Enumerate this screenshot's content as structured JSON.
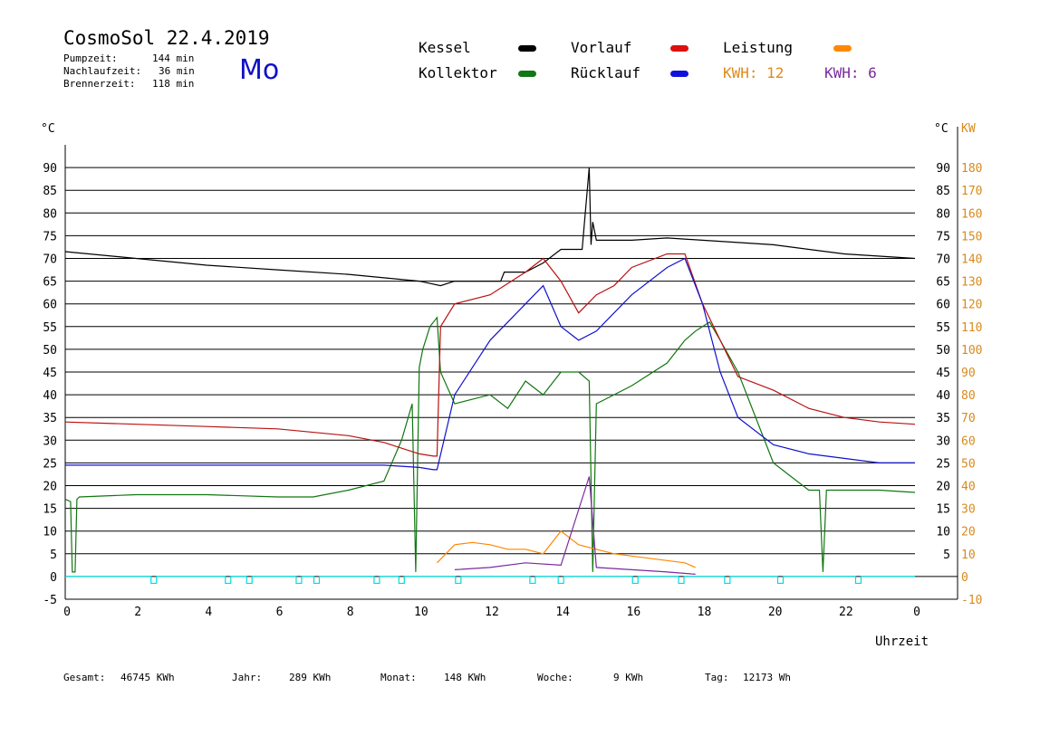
{
  "header": {
    "title": "CosmoSol 22.4.2019",
    "stats": [
      {
        "label": "Pumpzeit:",
        "value": "144 min"
      },
      {
        "label": "Nachlaufzeit:",
        "value": "36 min"
      },
      {
        "label": "Brennerzeit:",
        "value": "118 min"
      }
    ],
    "weekday": "Mo"
  },
  "legend": {
    "kessel": "Kessel",
    "kollektor": "Kollektor",
    "vorlauf": "Vorlauf",
    "ruecklauf": "Rücklauf",
    "leistung": "Leistung",
    "kwh1_label": "KWH: 12",
    "kwh2_label": "KWH: 6"
  },
  "colors": {
    "kessel": "#000000",
    "kollektor": "#117711",
    "vorlauf": "#bb1111",
    "ruecklauf": "#1111cc",
    "leistung": "#ff8800",
    "kwh2": "#7a2aa0",
    "pump": "#00dddd",
    "axis_right": "#d98a1a"
  },
  "footer": [
    {
      "label": "Gesamt:",
      "value": "46745 KWh"
    },
    {
      "label": "Jahr:",
      "value": "289 KWh"
    },
    {
      "label": "Monat:",
      "value": "148 KWh"
    },
    {
      "label": "Woche:",
      "value": "9 KWh"
    },
    {
      "label": "Tag:",
      "value": "12173 Wh"
    }
  ],
  "chart_data": {
    "type": "line",
    "title": "CosmoSol 22.4.2019",
    "xlabel": "Uhrzeit",
    "ylabel_left": "°C",
    "ylabel_right": "KW",
    "xlim": [
      0,
      24
    ],
    "ylim": [
      -5,
      95
    ],
    "x_ticks": [
      "0",
      "2",
      "4",
      "6",
      "8",
      "10",
      "12",
      "14",
      "16",
      "18",
      "20",
      "22",
      "0"
    ],
    "y_ticks_left": [
      "-5",
      "0",
      "5",
      "10",
      "15",
      "20",
      "25",
      "30",
      "35",
      "40",
      "45",
      "50",
      "55",
      "60",
      "65",
      "70",
      "75",
      "80",
      "85",
      "90"
    ],
    "y_ticks_right": [
      "-10",
      "0",
      "10",
      "20",
      "30",
      "40",
      "50",
      "60",
      "70",
      "80",
      "90",
      "100",
      "110",
      "120",
      "130",
      "140",
      "150",
      "160",
      "170",
      "180"
    ],
    "y_ticks_right_inner": [
      "5",
      "10",
      "15",
      "20",
      "25",
      "30",
      "35",
      "40",
      "45",
      "50",
      "55",
      "60",
      "65",
      "70",
      "75",
      "80",
      "85",
      "90"
    ],
    "grid": true,
    "series": [
      {
        "name": "Kessel",
        "x": [
          0,
          2,
          4,
          6,
          8,
          10,
          10.6,
          11,
          12,
          12.3,
          12.4,
          13,
          13.5,
          14,
          14.6,
          14.8,
          14.85,
          14.9,
          15,
          16,
          17,
          18,
          20,
          22,
          24
        ],
        "y": [
          71.5,
          70,
          68.5,
          67.5,
          66.5,
          65,
          64,
          65,
          65,
          65,
          67,
          67,
          69,
          72,
          72,
          90,
          73,
          78,
          74,
          74,
          74.5,
          74,
          73,
          71,
          70
        ]
      },
      {
        "name": "Kollektor",
        "x": [
          0,
          0.15,
          0.2,
          0.28,
          0.33,
          0.4,
          2,
          4,
          6,
          7,
          8,
          9,
          9.5,
          9.8,
          9.9,
          10,
          10.1,
          10.3,
          10.5,
          10.6,
          11,
          12,
          12.5,
          13,
          13.5,
          14,
          14.5,
          14.8,
          14.9,
          15,
          16,
          17,
          17.5,
          17.8,
          18,
          18.2,
          18.5,
          19,
          20,
          20.5,
          21,
          21.3,
          21.4,
          21.5,
          21.6,
          22,
          23,
          24
        ],
        "y": [
          17,
          16.5,
          1,
          1,
          17,
          17.5,
          18,
          18,
          17.5,
          17.5,
          19,
          21,
          30,
          38,
          1,
          46,
          50,
          55,
          57,
          45,
          38,
          40,
          37,
          43,
          40,
          45,
          45,
          43,
          1,
          38,
          42,
          47,
          52,
          54,
          55,
          56,
          52,
          45,
          25,
          22,
          19,
          19,
          1,
          19,
          19,
          19,
          19,
          18.5
        ]
      },
      {
        "name": "Vorlauf",
        "x": [
          0,
          2,
          4,
          6,
          8,
          9,
          10,
          10.4,
          10.5,
          10.6,
          11,
          12,
          13,
          13.5,
          14,
          14.5,
          15,
          15.5,
          16,
          17,
          17.5,
          18,
          19,
          20,
          21,
          22,
          23,
          24
        ],
        "y": [
          34,
          33.5,
          33,
          32.5,
          31,
          29.5,
          27,
          26.5,
          26.5,
          55,
          60,
          62,
          67,
          70,
          65,
          58,
          62,
          64,
          68,
          71,
          71,
          60,
          44,
          41,
          37,
          35,
          34,
          33.5
        ]
      },
      {
        "name": "Rücklauf",
        "x": [
          0,
          2,
          4,
          6,
          8,
          9,
          10,
          10.4,
          10.5,
          11,
          12,
          13,
          13.5,
          14,
          14.5,
          15,
          16,
          17,
          17.5,
          18,
          18.5,
          19,
          20,
          21,
          22,
          23,
          24
        ],
        "y": [
          24.5,
          24.5,
          24.5,
          24.5,
          24.5,
          24.5,
          24,
          23.5,
          23.5,
          40,
          52,
          60,
          64,
          55,
          52,
          54,
          62,
          68,
          70,
          60,
          45,
          35,
          29,
          27,
          26,
          25,
          25
        ]
      },
      {
        "name": "Leistung",
        "x": [
          10.5,
          11,
          11.5,
          12,
          12.5,
          13,
          13.5,
          14,
          14.5,
          15,
          15.5,
          16,
          16.5,
          17,
          17.5,
          17.8
        ],
        "y": [
          3,
          7,
          7.5,
          7,
          6,
          6,
          5,
          10,
          7,
          6,
          5,
          4.5,
          4,
          3.5,
          3,
          2
        ]
      },
      {
        "name": "KWH 6",
        "x": [
          11,
          12,
          13,
          14,
          14.8,
          15,
          16,
          17,
          17.8
        ],
        "y": [
          1.5,
          2,
          3,
          2.5,
          22,
          2,
          1.5,
          1,
          0.5
        ]
      }
    ],
    "pump_pulses": [
      2.5,
      4.6,
      5.2,
      6.6,
      7.1,
      8.8,
      9.5,
      11.1,
      13.2,
      14,
      16.1,
      17.4,
      18.7,
      20.2,
      22.4
    ]
  }
}
